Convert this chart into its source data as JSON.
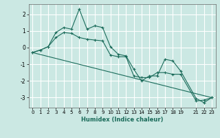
{
  "xlabel": "Humidex (Indice chaleur)",
  "bg_color": "#cbe8e3",
  "grid_color": "#ffffff",
  "line_color": "#1a6b5a",
  "ylim": [
    -3.6,
    2.6
  ],
  "xlim": [
    -0.5,
    23.5
  ],
  "yticks": [
    -3,
    -2,
    -1,
    0,
    1,
    2
  ],
  "xticks": [
    0,
    1,
    2,
    3,
    4,
    5,
    6,
    7,
    8,
    9,
    10,
    11,
    12,
    13,
    14,
    15,
    16,
    17,
    18,
    19,
    21,
    22,
    23
  ],
  "line1_x": [
    0,
    1,
    2,
    3,
    4,
    5,
    6,
    7,
    8,
    9,
    10,
    11,
    12,
    13,
    14,
    15,
    16,
    17,
    18,
    19,
    21,
    22,
    23
  ],
  "line1_y": [
    -0.3,
    -0.15,
    0.05,
    0.9,
    1.2,
    1.1,
    2.3,
    1.1,
    1.3,
    1.2,
    0.05,
    -0.4,
    -0.5,
    -1.3,
    -2.0,
    -1.7,
    -1.7,
    -0.7,
    -0.8,
    -1.4,
    -3.05,
    -3.3,
    -3.0
  ],
  "line2_x": [
    0,
    1,
    2,
    3,
    4,
    5,
    6,
    7,
    8,
    9,
    10,
    11,
    12,
    13,
    14,
    15,
    16,
    17,
    18,
    19,
    21,
    22,
    23
  ],
  "line2_y": [
    -0.3,
    -0.15,
    0.05,
    0.6,
    0.9,
    0.85,
    0.6,
    0.5,
    0.45,
    0.4,
    -0.45,
    -0.55,
    -0.55,
    -1.7,
    -1.8,
    -1.8,
    -1.5,
    -1.5,
    -1.6,
    -1.6,
    -3.2,
    -3.15,
    -3.0
  ],
  "line3_x": [
    0,
    23
  ],
  "line3_y": [
    -0.3,
    -3.0
  ]
}
